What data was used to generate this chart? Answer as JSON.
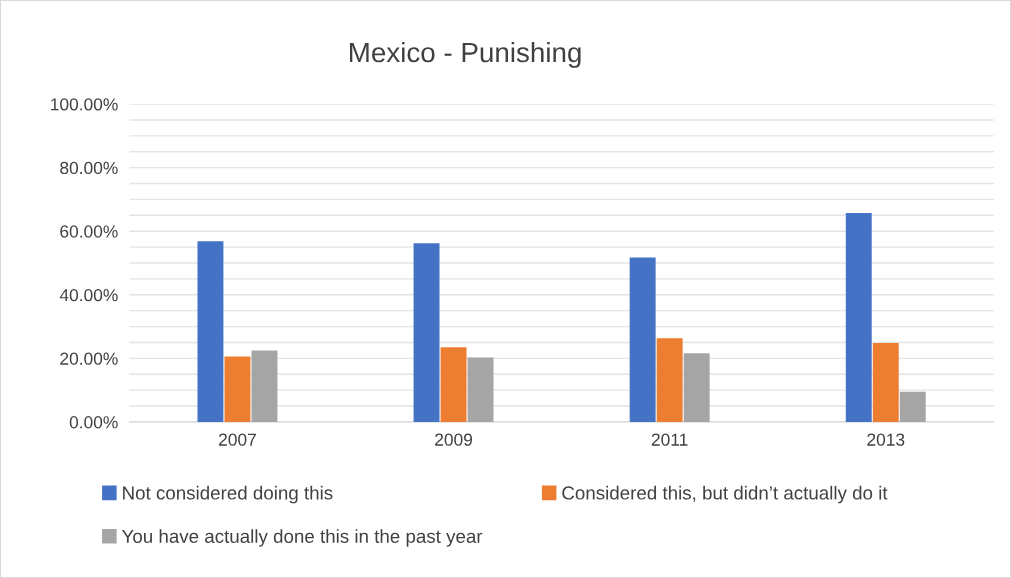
{
  "chart_data": {
    "type": "bar",
    "title": "Mexico - Punishing",
    "categories": [
      "2007",
      "2009",
      "2011",
      "2013"
    ],
    "series": [
      {
        "name": "Not considered doing this",
        "color": "#4472c4",
        "values": [
          56.8,
          56.2,
          51.7,
          65.7
        ]
      },
      {
        "name": "Considered this, but didn’t actually do it",
        "color": "#ed7d31",
        "values": [
          20.6,
          23.5,
          26.3,
          24.8
        ]
      },
      {
        "name": "You have actually done this in the past year",
        "color": "#a5a5a5",
        "values": [
          22.5,
          20.3,
          21.6,
          9.5
        ]
      }
    ],
    "ylim": [
      0,
      100
    ],
    "yticks": [
      {
        "value": 0,
        "label": "0.00%"
      },
      {
        "value": 5,
        "label": null
      },
      {
        "value": 10,
        "label": null
      },
      {
        "value": 15,
        "label": null
      },
      {
        "value": 20,
        "label": "20.00%"
      },
      {
        "value": 25,
        "label": null
      },
      {
        "value": 30,
        "label": null
      },
      {
        "value": 35,
        "label": null
      },
      {
        "value": 40,
        "label": "40.00%"
      },
      {
        "value": 45,
        "label": null
      },
      {
        "value": 50,
        "label": null
      },
      {
        "value": 55,
        "label": null
      },
      {
        "value": 60,
        "label": "60.00%"
      },
      {
        "value": 65,
        "label": null
      },
      {
        "value": 70,
        "label": null
      },
      {
        "value": 75,
        "label": null
      },
      {
        "value": 80,
        "label": "80.00%"
      },
      {
        "value": 85,
        "label": null
      },
      {
        "value": 90,
        "label": null
      },
      {
        "value": 95,
        "label": null
      },
      {
        "value": 100,
        "label": "100.00%"
      }
    ],
    "grid": "y",
    "legend": "bottom"
  }
}
